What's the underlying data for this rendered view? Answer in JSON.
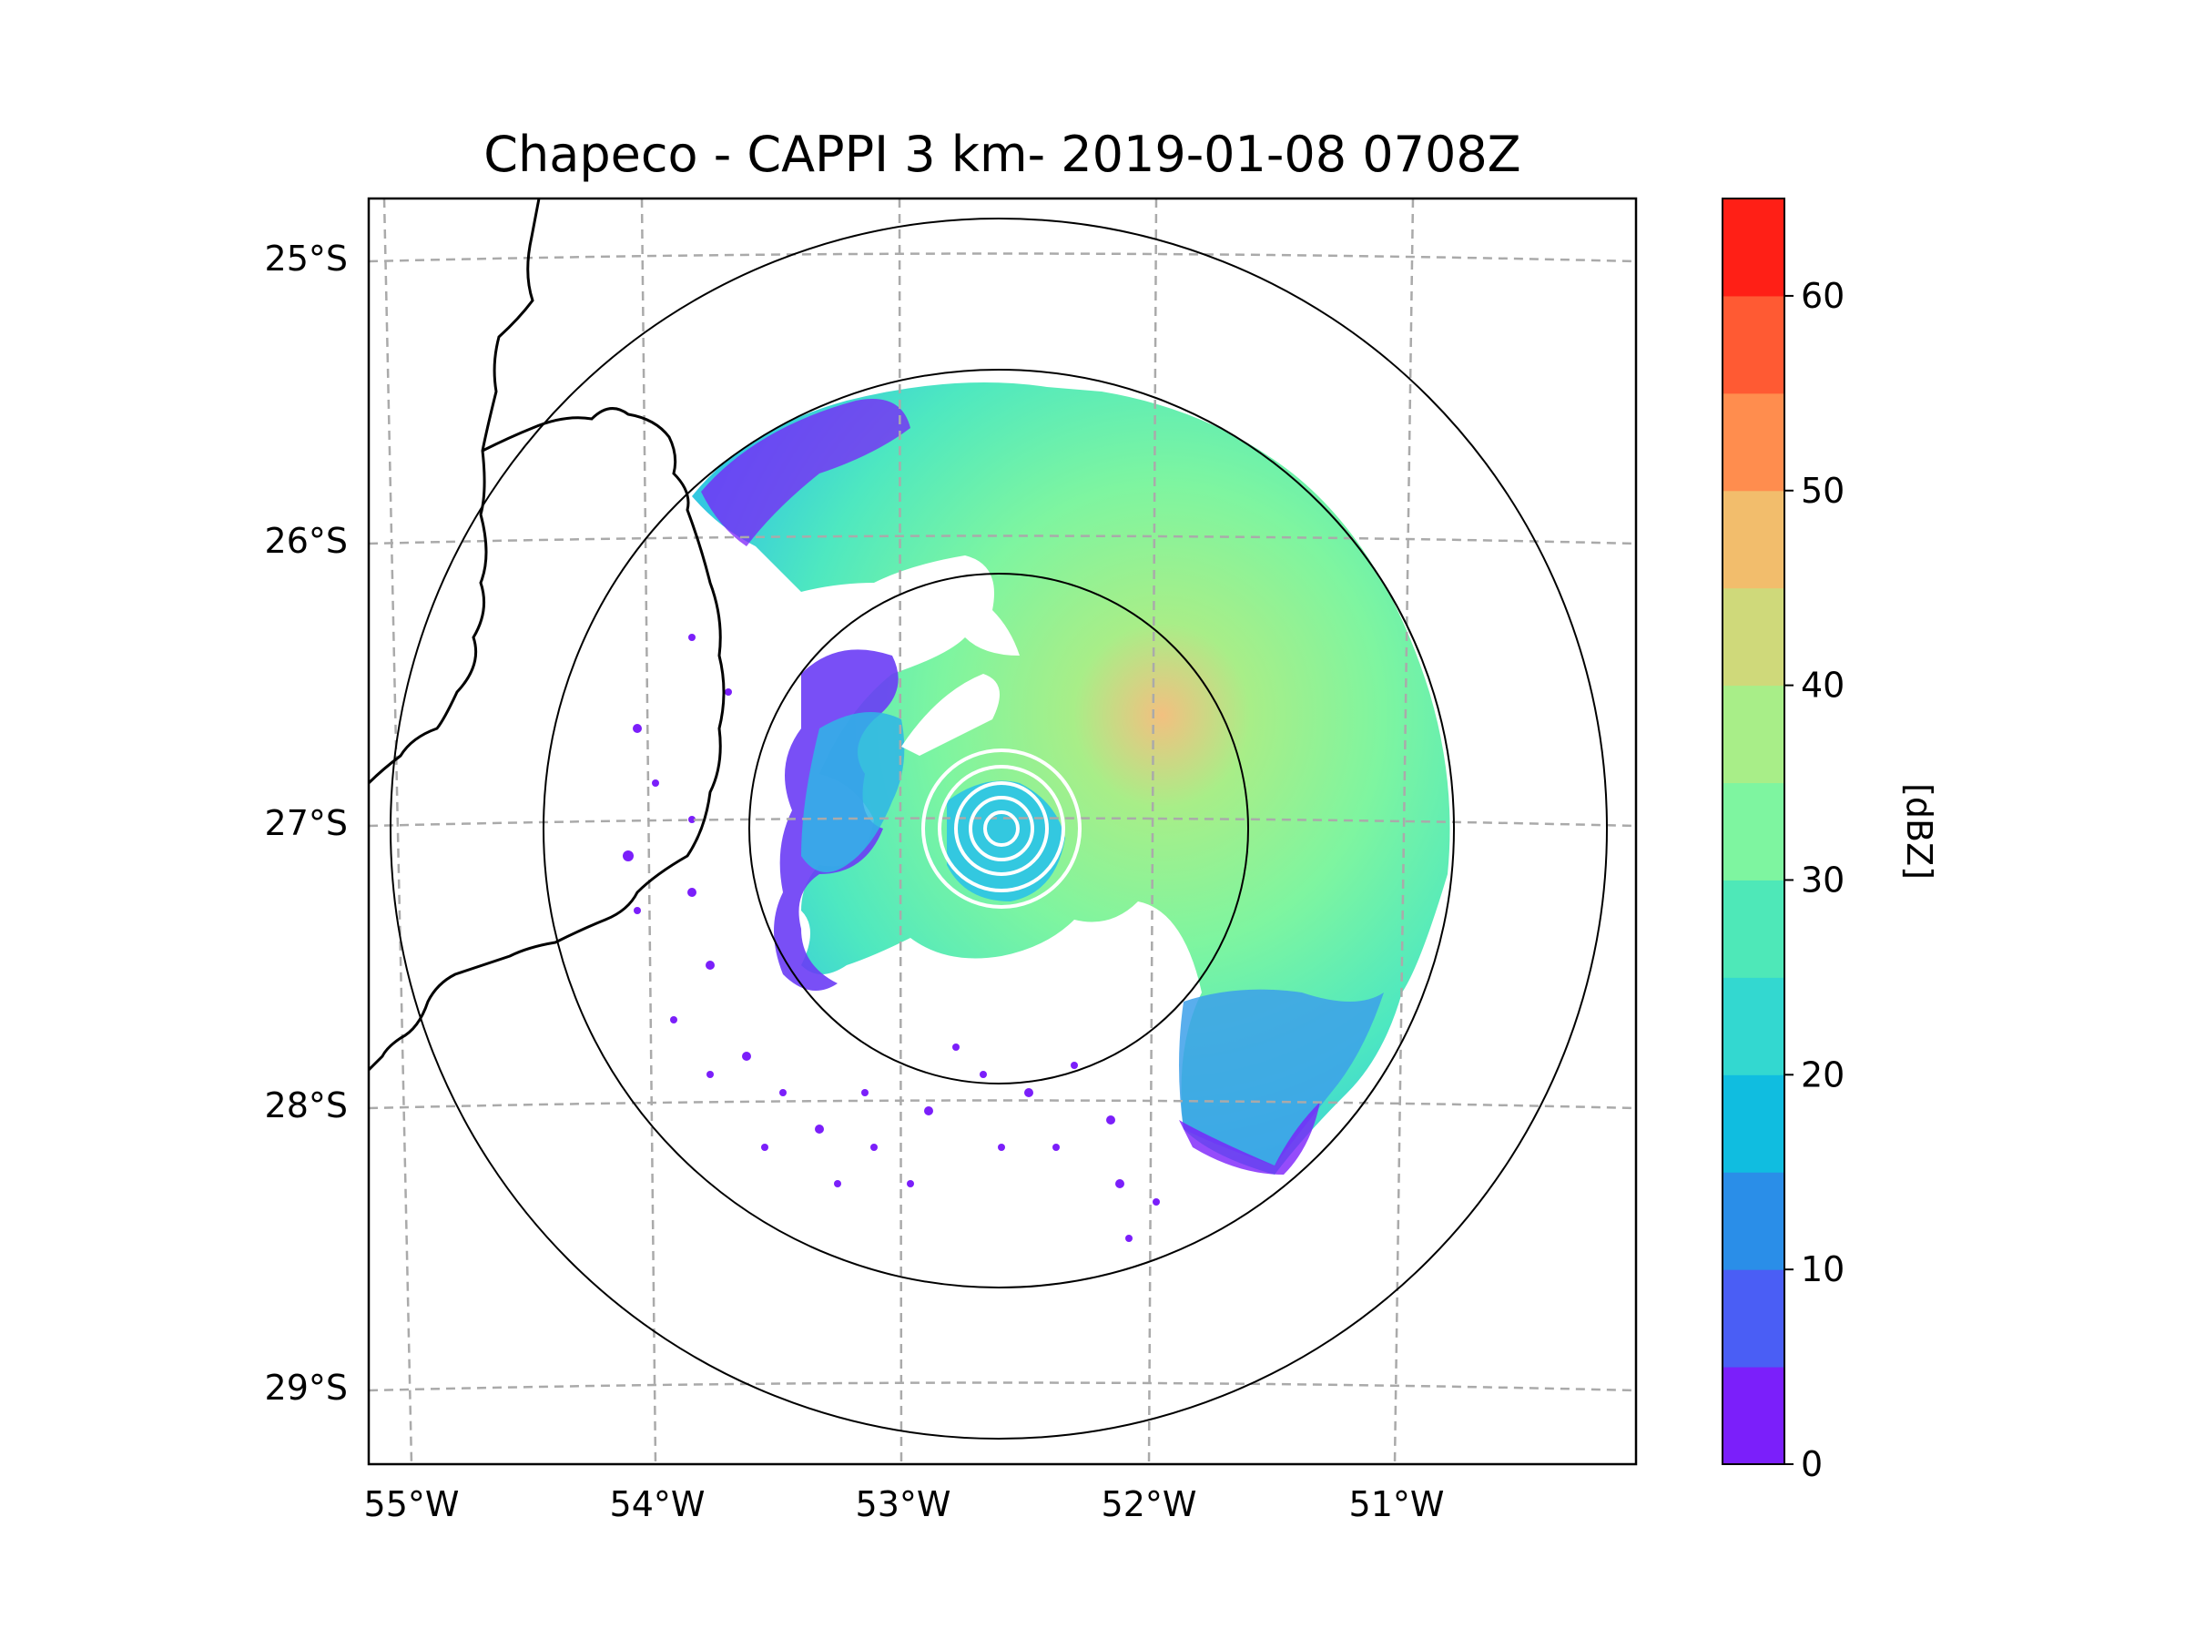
{
  "title": "Chapeco - CAPPI 3 km- 2019-01-08 0708Z",
  "map": {
    "lon_labels": [
      "55°W",
      "54°W",
      "53°W",
      "52°W",
      "51°W"
    ],
    "lat_labels": [
      "25°S",
      "26°S",
      "27°S",
      "28°S",
      "29°S"
    ],
    "lon_range": [
      -55.2,
      -50.05
    ],
    "lat_range": [
      -29.3,
      -24.8
    ],
    "radar_site": {
      "lon": -52.6,
      "lat": -27.02
    },
    "range_rings_deg": [
      0.95,
      1.65,
      2.3
    ]
  },
  "colorbar": {
    "label": "[dBZ]",
    "ticks": [
      "0",
      "10",
      "20",
      "30",
      "40",
      "50",
      "60"
    ],
    "levels": [
      0,
      5,
      10,
      15,
      20,
      25,
      30,
      35,
      40,
      45,
      50,
      55,
      60,
      65
    ],
    "colors": [
      "#7b1ffa",
      "#4a5ef5",
      "#2a8ee8",
      "#10bde0",
      "#33d8d0",
      "#4ee8b8",
      "#7ef5a0",
      "#a8ee88",
      "#cfd97a",
      "#f2bd6c",
      "#ff8d4e",
      "#ff5a33",
      "#ff1f16"
    ]
  },
  "colors": {
    "coastline": "#000000",
    "gridline": "#aaaaaa",
    "range_ring": "#000000",
    "center_rings": "#ffffff"
  }
}
